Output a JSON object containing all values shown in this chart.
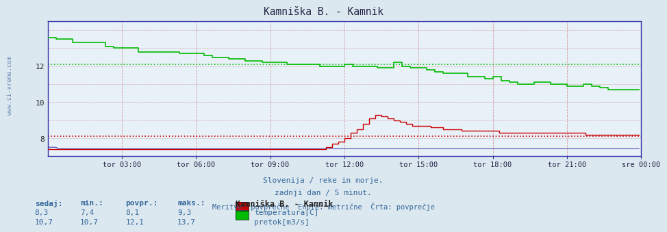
{
  "title": "Kamniška B. - Kamnik",
  "bg_color": "#dce8f0",
  "plot_bg_color": "#e8f0f8",
  "x_tick_labels": [
    "tor 03:00",
    "tor 06:00",
    "tor 09:00",
    "tor 12:00",
    "tor 15:00",
    "tor 18:00",
    "tor 21:00",
    "sre 00:00"
  ],
  "n_points": 288,
  "subtitle1": "Slovenija / reke in morje.",
  "subtitle2": "zadnji dan / 5 minut.",
  "subtitle3": "Meritve: povprečne  Enote: metrične  Črta: povprečje",
  "legend_title": "Kamniška B. - Kamnik",
  "temp_label": "temperatura[C]",
  "flow_label": "pretok[m3/s]",
  "temp_color": "#cc0000",
  "flow_color": "#00bb00",
  "height_color": "#4444cc",
  "temp_avg": 8.1,
  "flow_avg": 12.1,
  "ylim_min": 7.0,
  "ylim_max": 14.5,
  "side_label": "www.si-vreme.com",
  "stat_headers": [
    "sedaj:",
    "min.:",
    "povpr.:",
    "maks.:"
  ],
  "temp_stats": [
    "8,3",
    "7,4",
    "8,1",
    "9,3"
  ],
  "flow_stats": [
    "10,7",
    "10,7",
    "12,1",
    "13,7"
  ]
}
